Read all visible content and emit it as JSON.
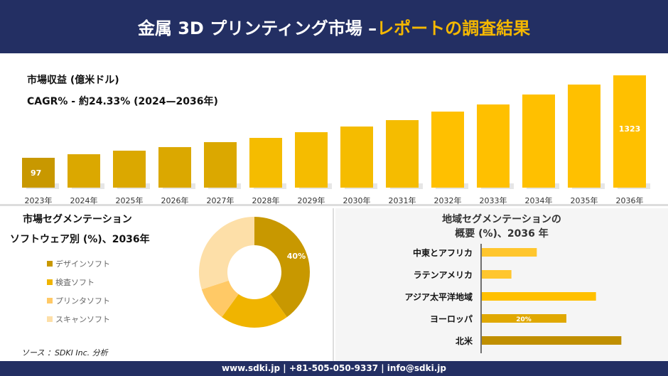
{
  "header": {
    "title_main": "金属 3D プリンティング市場 –",
    "title_highlight": "レポートの調査結果"
  },
  "chart_data": [
    {
      "type": "bar",
      "title": "市場収益 (億米ドル)",
      "subtitle": "CAGR% - 約24.33% (2024—2036年)",
      "categories": [
        "2023年",
        "2024年",
        "2025年",
        "2026年",
        "2027年",
        "2028年",
        "2029年",
        "2030年",
        "2031年",
        "2032年",
        "2033年",
        "2034年",
        "2035年",
        "2036年"
      ],
      "values": [
        97,
        150,
        203,
        256,
        330,
        393,
        478,
        562,
        657,
        784,
        890,
        1038,
        1186,
        1323
      ],
      "data_labels": {
        "0": "97",
        "13": "1323"
      },
      "colors": [
        "#c89800",
        "#f5b800",
        "#ffc000"
      ]
    },
    {
      "type": "pie",
      "title_line1": "市場セグメンテーション",
      "title_line2": "ソフトウェア別 (%)、2036年",
      "labels": [
        "デザインソフト",
        "検査ソフト",
        "プリンタソフト",
        "スキャンソフト"
      ],
      "values": [
        40,
        20,
        10,
        30
      ],
      "data_labels": {
        "0": "40%"
      },
      "colors": [
        "#c89800",
        "#f0b400",
        "#ffc966",
        "#fddfa8"
      ],
      "legend": "left"
    },
    {
      "type": "bar",
      "orientation": "horizontal",
      "title_line1": "地域セグメンテーションの",
      "title_line2": "概要 (%)、2036 年",
      "categories": [
        "中東とアフリカ",
        "ラテンアメリカ",
        "アジア太平洋地域",
        "ヨーロッパ",
        "北米"
      ],
      "values": [
        13,
        7,
        27,
        20,
        33
      ],
      "data_labels": {
        "3": "20%"
      },
      "colors": [
        "#ffc62e",
        "#ffc62e",
        "#ffc000",
        "#e0a800",
        "#c08f00"
      ]
    }
  ],
  "source": "ソース ：SDKI Inc. 分析",
  "footer": "www.sdki.jp | +81-505-050-9337 | info@sdki.jp"
}
